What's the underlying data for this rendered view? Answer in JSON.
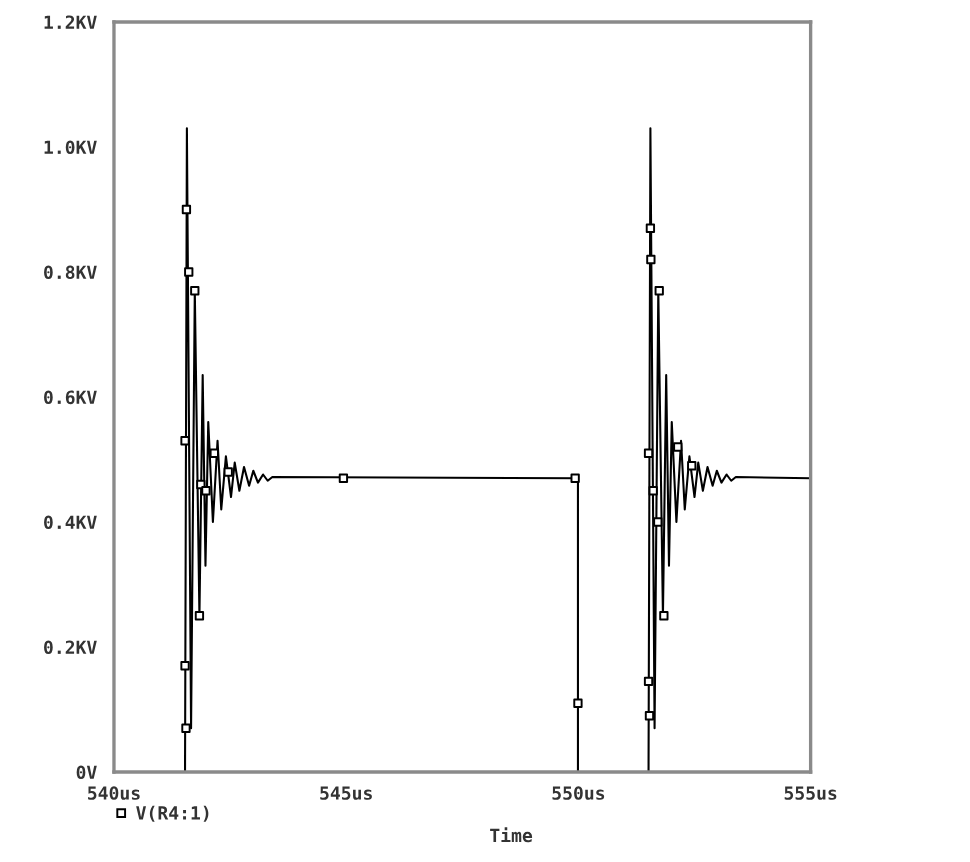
{
  "chart_data": {
    "type": "line",
    "xlabel": "Time",
    "legend": "bottom left",
    "grid": false,
    "xlim": [
      540,
      555
    ],
    "xticks": [
      {
        "value": 540,
        "label": "540us"
      },
      {
        "value": 545,
        "label": "545us"
      },
      {
        "value": 550,
        "label": "550us"
      },
      {
        "value": 555,
        "label": "555us"
      }
    ],
    "ylim": [
      0,
      1.2
    ],
    "yticks": [
      {
        "value": 0,
        "label": "0V"
      },
      {
        "value": 0.2,
        "label": "0.2KV"
      },
      {
        "value": 0.4,
        "label": "0.4KV"
      },
      {
        "value": 0.6,
        "label": "0.6KV"
      },
      {
        "value": 0.8,
        "label": "0.8KV"
      },
      {
        "value": 1.0,
        "label": "1.0KV"
      },
      {
        "value": 1.2,
        "label": "1.2KV"
      }
    ],
    "series": [
      {
        "name": "V(R4:1)",
        "color": "#000000",
        "line_style": "solid",
        "x": [
          540,
          541.53,
          541.57,
          541.66,
          541.74,
          541.84,
          541.91,
          541.97,
          542.03,
          542.13,
          542.23,
          542.31,
          542.41,
          542.52,
          542.6,
          542.7,
          542.8,
          542.91,
          543.0,
          543.1,
          543.21,
          543.31,
          543.41,
          549.99,
          549.99,
          551.51,
          551.55,
          551.64,
          551.72,
          551.82,
          551.89,
          551.95,
          552.01,
          552.11,
          552.21,
          552.29,
          552.39,
          552.5,
          552.58,
          552.68,
          552.78,
          552.89,
          552.98,
          553.08,
          553.19,
          553.29,
          553.39,
          555
        ],
        "values": [
          0,
          0,
          1.03,
          0.07,
          0.77,
          0.25,
          0.635,
          0.33,
          0.56,
          0.4,
          0.53,
          0.42,
          0.505,
          0.44,
          0.495,
          0.45,
          0.488,
          0.458,
          0.482,
          0.463,
          0.476,
          0.466,
          0.472,
          0.47,
          0,
          0,
          1.03,
          0.07,
          0.77,
          0.25,
          0.635,
          0.33,
          0.56,
          0.4,
          0.53,
          0.42,
          0.505,
          0.44,
          0.495,
          0.45,
          0.488,
          0.458,
          0.482,
          0.463,
          0.476,
          0.466,
          0.472,
          0.47
        ]
      },
      {
        "type": "scatter",
        "color": "#000000",
        "marker": "square",
        "x": [
          541.53,
          541.53,
          541.55,
          541.56,
          541.61,
          541.74,
          541.84,
          541.87,
          541.98,
          542.16,
          542.46,
          544.94,
          549.93,
          549.99,
          551.51,
          551.51,
          551.53,
          551.55,
          551.56,
          551.61,
          551.71,
          551.74,
          551.84,
          552.14,
          552.44
        ],
        "values": [
          0.17,
          0.53,
          0.07,
          0.9,
          0.8,
          0.77,
          0.25,
          0.46,
          0.45,
          0.51,
          0.48,
          0.47,
          0.47,
          0.11,
          0.145,
          0.51,
          0.09,
          0.87,
          0.82,
          0.45,
          0.4,
          0.77,
          0.25,
          0.52,
          0.49
        ]
      }
    ]
  }
}
